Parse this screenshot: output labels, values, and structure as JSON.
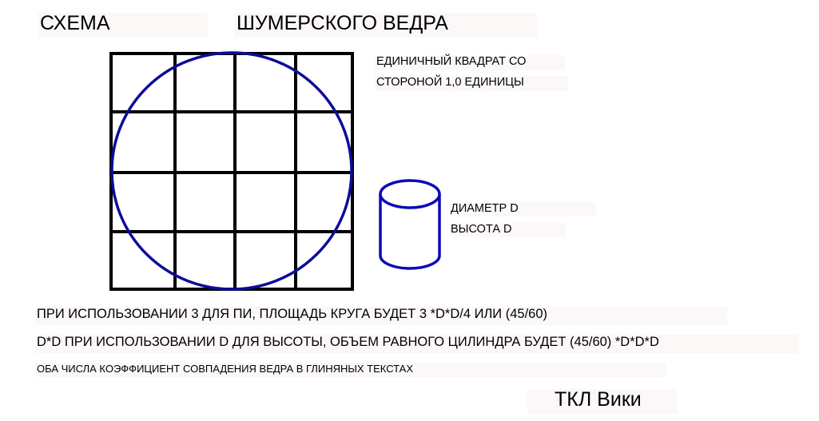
{
  "title": {
    "left": "СХЕМА",
    "right": "ШУМЕРСКОГО ВЕДРА"
  },
  "unit_square": {
    "line1": "ЕДИНИЧНЫЙ КВАДРАТ СО",
    "line2": "СТОРОНОЙ 1,0 ЕДИНИЦЫ"
  },
  "cylinder": {
    "diameter": "ДИАМЕТР D",
    "height": "ВЫСОТА D"
  },
  "notes": {
    "line1": "ПРИ ИСПОЛЬЗОВАНИИ 3 ДЛЯ ПИ, ПЛОЩАДЬ КРУГА БУДЕТ 3 *D*D/4 ИЛИ (45/60)",
    "line2": "D*D ПРИ ИСПОЛЬЗОВАНИИ D ДЛЯ ВЫСОТЫ, ОБЪЕМ РАВНОГО ЦИЛИНДРА БУДЕТ (45/60) *D*D*D",
    "line3": "ОБА ЧИСЛА КОЭФФИЦИЕНТ СОВПАДЕНИЯ ВЕДРА В ГЛИНЯНЫХ ТЕКСТАХ"
  },
  "signature": "ТКЛ Вики",
  "colors": {
    "grid": "#000000",
    "circle": "#0c0c99",
    "cylinder": "#0b0bb5",
    "label_bg": "#fcf8f8"
  }
}
